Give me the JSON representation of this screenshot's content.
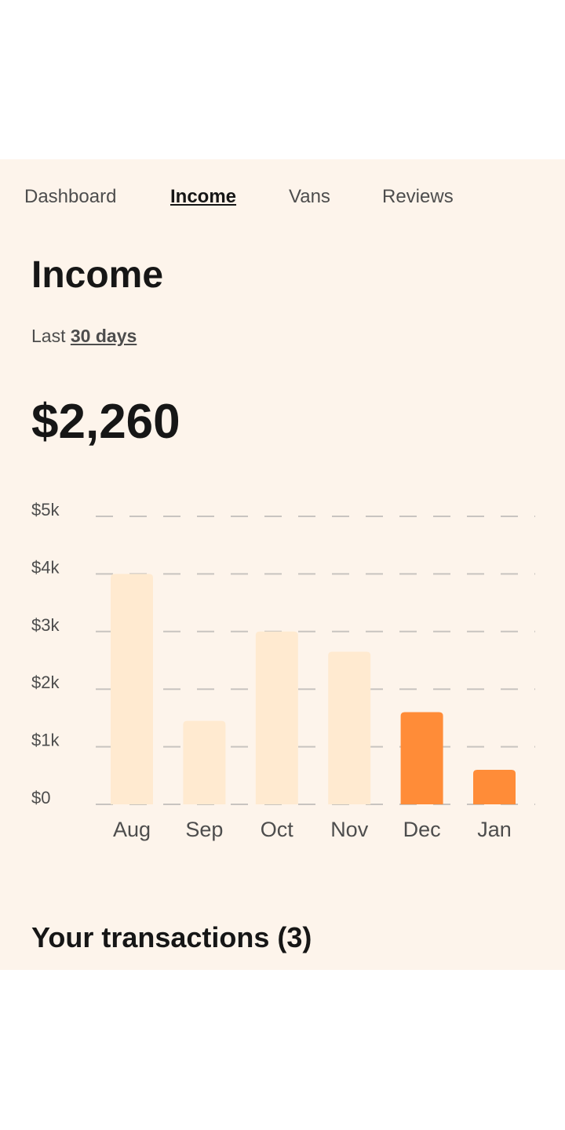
{
  "nav": {
    "items": [
      {
        "label": "Dashboard",
        "active": false
      },
      {
        "label": "Income",
        "active": true
      },
      {
        "label": "Vans",
        "active": false
      },
      {
        "label": "Reviews",
        "active": false
      }
    ]
  },
  "main": {
    "title": "Income",
    "period_prefix": "Last",
    "period_link": "30 days",
    "amount": "$2,260",
    "transactions_heading": "Your transactions (3)"
  },
  "colors": {
    "background": "#FDF4EB",
    "bar_light": "#FFEAD0",
    "bar_accent": "#FF8C38",
    "text_dark": "#161616",
    "text_muted": "#4D4D4D"
  },
  "chart_data": {
    "type": "bar",
    "categories": [
      "Aug",
      "Sep",
      "Oct",
      "Nov",
      "Dec",
      "Jan"
    ],
    "values": [
      4000,
      1450,
      3000,
      2650,
      1600,
      600
    ],
    "highlighted": [
      false,
      false,
      false,
      false,
      true,
      true
    ],
    "y_ticks": [
      "$0",
      "$1k",
      "$2k",
      "$3k",
      "$4k",
      "$5k"
    ],
    "ylim": [
      0,
      5000
    ],
    "grid": true,
    "title": "",
    "xlabel": "",
    "ylabel": ""
  }
}
